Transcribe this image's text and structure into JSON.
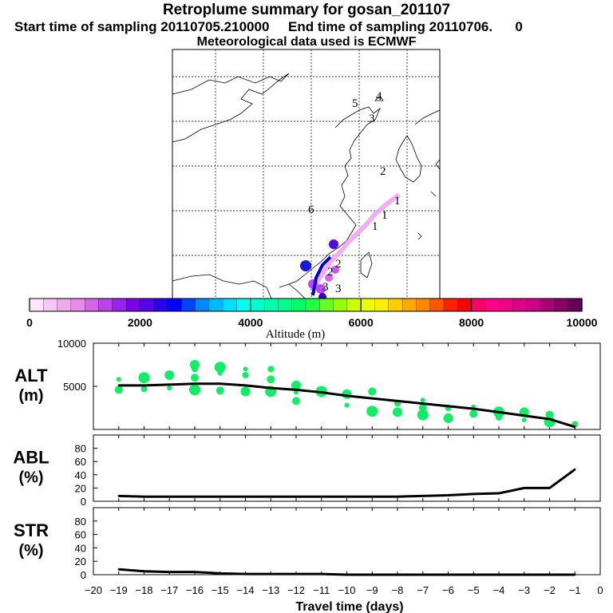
{
  "header": {
    "title": "Retroplume summary for gosan_201107",
    "start_label": "Start time of sampling 20110705.210000",
    "end_label": "End time of sampling 20110706.",
    "end_suffix": "0",
    "met_label": "Meteorological data used is ECMWF"
  },
  "colorbar": {
    "ticks": [
      "0",
      "2000",
      "4000",
      "6000",
      "8000",
      "10000"
    ],
    "label": "Altitude (m)",
    "colors": [
      "#fbe6fb",
      "#f5c8f5",
      "#eeaaee",
      "#e58ce8",
      "#d466e6",
      "#bb44e8",
      "#9922ee",
      "#7a00ee",
      "#5a00ee",
      "#2b00ee",
      "#0000ff",
      "#0044ff",
      "#0088ff",
      "#00b8ff",
      "#00e0ff",
      "#00ffee",
      "#00ffcc",
      "#00ffaa",
      "#00ff88",
      "#00ff66",
      "#22ff44",
      "#66ff22",
      "#99ff00",
      "#ccff00",
      "#eeff00",
      "#ffee00",
      "#ffcc00",
      "#ffaa00",
      "#ff8800",
      "#ff5500",
      "#ff2200",
      "#ff0000",
      "#ff0066",
      "#ff0088",
      "#ee0088",
      "#dd0088",
      "#cc0088",
      "#aa0077",
      "#880066",
      "#660055"
    ]
  },
  "map": {
    "labels": [
      {
        "text": "5",
        "color": "#8800cc"
      },
      {
        "text": "4",
        "color": "#8800aa"
      },
      {
        "text": "3",
        "color": "#8800aa"
      },
      {
        "text": "2",
        "color": "#8800aa"
      },
      {
        "text": "1",
        "color": "#000000"
      },
      {
        "text": "6",
        "color": "#000000"
      },
      {
        "text": "1",
        "color": "#000000"
      },
      {
        "text": "1",
        "color": "#000000"
      },
      {
        "text": "2",
        "color": "#000000"
      },
      {
        "text": "2",
        "color": "#000000"
      },
      {
        "text": "3",
        "color": "#000000"
      },
      {
        "text": "3",
        "color": "#000000"
      }
    ]
  },
  "chart_data": [
    {
      "type": "line",
      "panel": "ALT",
      "ylabel_line1": "ALT",
      "ylabel_line2": "(m)",
      "xlim": [
        -20,
        0
      ],
      "ylim": [
        0,
        10000
      ],
      "yticks": [
        "5000",
        "10000"
      ],
      "x": [
        -19,
        -18,
        -17,
        -16,
        -15,
        -14,
        -13,
        -12,
        -11,
        -10,
        -9,
        -8,
        -7,
        -6,
        -5,
        -4,
        -3,
        -2,
        -1
      ],
      "values": [
        5100,
        5100,
        5200,
        5300,
        5300,
        5100,
        4800,
        4600,
        4300,
        3900,
        3600,
        3300,
        3000,
        2700,
        2400,
        2000,
        1600,
        1200,
        300
      ],
      "scatter_color": "#11ee66",
      "scatter": [
        {
          "x": -19,
          "y": 5800
        },
        {
          "x": -19,
          "y": 4600
        },
        {
          "x": -18,
          "y": 6000
        },
        {
          "x": -18,
          "y": 4700
        },
        {
          "x": -17,
          "y": 6300
        },
        {
          "x": -17,
          "y": 4800
        },
        {
          "x": -16,
          "y": 6000
        },
        {
          "x": -16,
          "y": 4600
        },
        {
          "x": -16,
          "y": 7000
        },
        {
          "x": -16,
          "y": 7500
        },
        {
          "x": -15,
          "y": 6500
        },
        {
          "x": -15,
          "y": 4500
        },
        {
          "x": -15,
          "y": 7200
        },
        {
          "x": -14,
          "y": 6300
        },
        {
          "x": -14,
          "y": 4400
        },
        {
          "x": -14,
          "y": 7000
        },
        {
          "x": -13,
          "y": 5800
        },
        {
          "x": -13,
          "y": 4400
        },
        {
          "x": -13,
          "y": 7000
        },
        {
          "x": -12,
          "y": 5100
        },
        {
          "x": -12,
          "y": 4300
        },
        {
          "x": -12,
          "y": 3300
        },
        {
          "x": -11,
          "y": 4400
        },
        {
          "x": -11,
          "y": 4100
        },
        {
          "x": -10,
          "y": 4100
        },
        {
          "x": -10,
          "y": 2800
        },
        {
          "x": -9,
          "y": 4400
        },
        {
          "x": -9,
          "y": 2100
        },
        {
          "x": -8,
          "y": 3000
        },
        {
          "x": -8,
          "y": 2000
        },
        {
          "x": -7,
          "y": 3400
        },
        {
          "x": -7,
          "y": 2500
        },
        {
          "x": -7,
          "y": 1700
        },
        {
          "x": -6,
          "y": 2500
        },
        {
          "x": -6,
          "y": 1300
        },
        {
          "x": -5,
          "y": 2600
        },
        {
          "x": -5,
          "y": 1800
        },
        {
          "x": -4,
          "y": 2000
        },
        {
          "x": -4,
          "y": 1400
        },
        {
          "x": -3,
          "y": 2000
        },
        {
          "x": -3,
          "y": 1100
        },
        {
          "x": -2,
          "y": 1700
        },
        {
          "x": -2,
          "y": 900
        },
        {
          "x": -1,
          "y": 600
        }
      ]
    },
    {
      "type": "line",
      "panel": "ABL",
      "ylabel_line1": "ABL",
      "ylabel_line2": "(%)",
      "xlim": [
        -20,
        0
      ],
      "ylim": [
        0,
        100
      ],
      "yticks": [
        "0",
        "20",
        "40",
        "60",
        "80"
      ],
      "x": [
        -19,
        -18,
        -17,
        -16,
        -15,
        -14,
        -13,
        -12,
        -11,
        -10,
        -9,
        -8,
        -7,
        -6,
        -5,
        -4,
        -3,
        -2,
        -1
      ],
      "values": [
        8,
        7,
        7,
        7,
        7,
        7,
        7,
        7,
        7,
        7,
        7,
        7,
        8,
        9,
        11,
        12,
        20,
        20,
        48
      ]
    },
    {
      "type": "line",
      "panel": "STR",
      "ylabel_line1": "STR",
      "ylabel_line2": "(%)",
      "xlim": [
        -20,
        0
      ],
      "ylim": [
        0,
        100
      ],
      "yticks": [
        "0",
        "20",
        "40",
        "60",
        "80"
      ],
      "xticks": [
        "−20",
        "−19",
        "−18",
        "−17",
        "−16",
        "−15",
        "−14",
        "−13",
        "−12",
        "−11",
        "−10",
        "−9",
        "−8",
        "−7",
        "−6",
        "−5",
        "−4",
        "−3",
        "−2",
        "−1",
        "0"
      ],
      "xlabel": "Travel time (days)",
      "x": [
        -19,
        -18,
        -17,
        -16,
        -15,
        -14,
        -13,
        -12,
        -11,
        -10,
        -9,
        -8,
        -7,
        -6,
        -5,
        -4,
        -3,
        -2,
        -1
      ],
      "values": [
        8,
        5,
        4,
        4,
        2,
        1,
        1,
        1,
        1,
        0,
        0,
        0,
        0,
        0,
        0,
        0,
        0,
        0,
        0
      ]
    }
  ]
}
